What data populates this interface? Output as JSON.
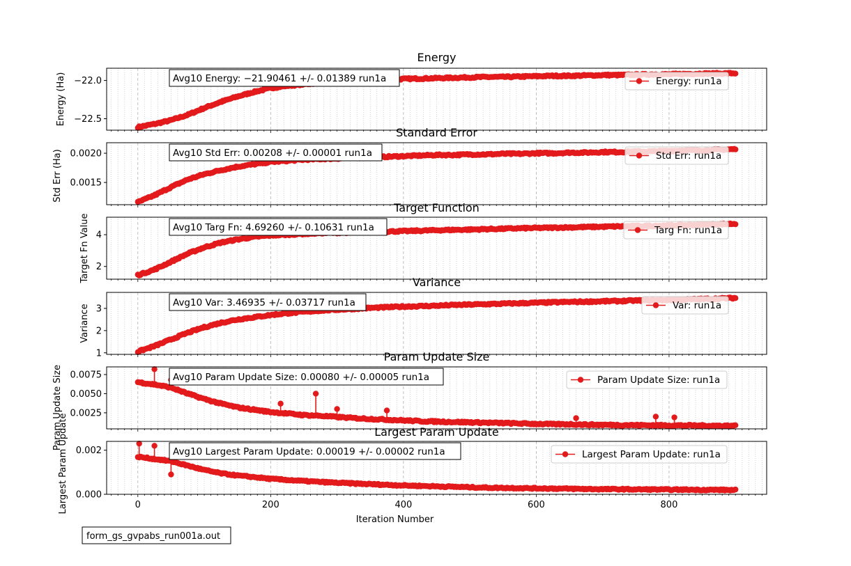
{
  "footer_label": "form_gs_gvpabs_run001a.out",
  "x_axis": {
    "label": "Iteration Number",
    "range": [
      -47,
      947
    ],
    "ticks": [
      0,
      200,
      400,
      600,
      800
    ],
    "tick_labels": [
      "0",
      "200",
      "400",
      "600",
      "800"
    ],
    "n_iterations": 900
  },
  "colors": {
    "series": "#e31a1c",
    "grid_major": "#b0b0b0",
    "grid_minor": "#c8c8c8"
  },
  "chart_data": [
    {
      "type": "line",
      "title": "Energy",
      "ylabel": "Energy (Ha)",
      "ylim": [
        -22.65,
        -21.84
      ],
      "yticks": [
        -22.5,
        -22.0
      ],
      "ytick_labels": [
        "−22.5",
        "−22.0"
      ],
      "annotation": "Avg10 Energy: −21.90461 +/- 0.01389  run1a",
      "legend": "Energy: run1a",
      "legend_placement": "right",
      "series": [
        {
          "name": "run1a",
          "x": [
            0,
            25,
            50,
            75,
            100,
            125,
            150,
            175,
            200,
            225,
            250,
            275,
            300,
            325,
            350,
            375,
            400,
            425,
            450,
            475,
            500,
            525,
            550,
            575,
            600,
            625,
            650,
            675,
            700,
            725,
            750,
            775,
            800,
            825,
            850,
            875,
            900
          ],
          "values": [
            -22.61,
            -22.57,
            -22.52,
            -22.45,
            -22.36,
            -22.28,
            -22.21,
            -22.15,
            -22.1,
            -22.07,
            -22.05,
            -22.03,
            -22.02,
            -22.01,
            -22.0,
            -21.99,
            -21.98,
            -21.975,
            -21.97,
            -21.965,
            -21.96,
            -21.955,
            -21.955,
            -21.95,
            -21.945,
            -21.94,
            -21.94,
            -21.935,
            -21.93,
            -21.93,
            -21.925,
            -21.92,
            -21.92,
            -21.915,
            -21.91,
            -21.91,
            -21.905
          ]
        }
      ]
    },
    {
      "type": "line",
      "title": "Standard Error",
      "ylabel": "Std Err (Ha)",
      "ylim": [
        0.00112,
        0.00218
      ],
      "yticks": [
        0.0015,
        0.002
      ],
      "ytick_labels": [
        "0.0015",
        "0.0020"
      ],
      "annotation": "Avg10 Std Err: 0.00208 +/- 0.00001  run1a",
      "legend": "Std Err: run1a",
      "legend_placement": "right",
      "series": [
        {
          "name": "run1a",
          "x": [
            0,
            25,
            50,
            75,
            100,
            125,
            150,
            175,
            200,
            225,
            250,
            275,
            300,
            325,
            350,
            375,
            400,
            425,
            450,
            475,
            500,
            525,
            550,
            575,
            600,
            625,
            650,
            675,
            700,
            725,
            750,
            775,
            800,
            825,
            850,
            875,
            900
          ],
          "values": [
            0.00116,
            0.00128,
            0.00142,
            0.00155,
            0.00164,
            0.00171,
            0.00177,
            0.00181,
            0.00185,
            0.00187,
            0.00189,
            0.0019,
            0.00191,
            0.00192,
            0.00193,
            0.00194,
            0.00195,
            0.00196,
            0.00197,
            0.00197,
            0.00198,
            0.00198,
            0.00199,
            0.00199,
            0.002,
            0.002,
            0.00201,
            0.00201,
            0.00202,
            0.00202,
            0.00203,
            0.00203,
            0.00204,
            0.00205,
            0.00205,
            0.00206,
            0.00207
          ]
        }
      ]
    },
    {
      "type": "line",
      "title": "Target Function",
      "ylabel": "Target Fn Value",
      "ylim": [
        1.2,
        5.1
      ],
      "yticks": [
        2,
        4
      ],
      "ytick_labels": [
        "2",
        "4"
      ],
      "annotation": "Avg10 Targ Fn: 4.69260 +/- 0.10631  run1a",
      "legend": "Targ Fn: run1a",
      "legend_placement": "right",
      "series": [
        {
          "name": "run1a",
          "x": [
            0,
            25,
            50,
            75,
            100,
            125,
            150,
            175,
            200,
            225,
            250,
            275,
            300,
            325,
            350,
            375,
            400,
            425,
            450,
            475,
            500,
            525,
            550,
            575,
            600,
            625,
            650,
            675,
            700,
            725,
            750,
            775,
            800,
            825,
            850,
            875,
            900
          ],
          "values": [
            1.45,
            1.8,
            2.3,
            2.8,
            3.2,
            3.5,
            3.7,
            3.85,
            3.95,
            4.0,
            4.05,
            4.1,
            4.12,
            4.15,
            4.18,
            4.2,
            4.22,
            4.25,
            4.28,
            4.3,
            4.32,
            4.35,
            4.37,
            4.4,
            4.42,
            4.44,
            4.46,
            4.48,
            4.5,
            4.52,
            4.54,
            4.56,
            4.58,
            4.6,
            4.63,
            4.66,
            4.69
          ]
        }
      ]
    },
    {
      "type": "line",
      "title": "Variance",
      "ylabel": "Variance",
      "ylim": [
        0.93,
        3.72
      ],
      "yticks": [
        1,
        2,
        3
      ],
      "ytick_labels": [
        "1",
        "2",
        "3"
      ],
      "annotation": "Avg10 Var: 3.46935 +/- 0.03717  run1a",
      "legend": "Var: run1a",
      "legend_placement": "right",
      "series": [
        {
          "name": "run1a",
          "x": [
            0,
            25,
            50,
            75,
            100,
            125,
            150,
            175,
            200,
            225,
            250,
            275,
            300,
            325,
            350,
            375,
            400,
            425,
            450,
            475,
            500,
            525,
            550,
            575,
            600,
            625,
            650,
            675,
            700,
            725,
            750,
            775,
            800,
            825,
            850,
            875,
            900
          ],
          "values": [
            1.05,
            1.3,
            1.6,
            1.9,
            2.15,
            2.35,
            2.5,
            2.6,
            2.7,
            2.78,
            2.84,
            2.9,
            2.94,
            2.98,
            3.02,
            3.05,
            3.08,
            3.1,
            3.12,
            3.15,
            3.17,
            3.19,
            3.21,
            3.23,
            3.25,
            3.27,
            3.29,
            3.3,
            3.32,
            3.33,
            3.35,
            3.37,
            3.38,
            3.4,
            3.42,
            3.44,
            3.47
          ]
        }
      ]
    },
    {
      "type": "line",
      "title": "Param Update Size",
      "ylabel": "Param Update Size",
      "ylim": [
        0.0004,
        0.0085
      ],
      "yticks": [
        0.0025,
        0.005,
        0.0075
      ],
      "ytick_labels": [
        "0.0025",
        "0.0050",
        "0.0075"
      ],
      "annotation": "Avg10 Param Update Size: 0.00080 +/- 0.00005  run1a",
      "legend": "Param Update Size: run1a",
      "legend_placement": "right",
      "series": [
        {
          "name": "run1a",
          "x": [
            0,
            25,
            50,
            75,
            100,
            125,
            150,
            175,
            200,
            225,
            250,
            275,
            300,
            325,
            350,
            375,
            400,
            425,
            450,
            475,
            500,
            525,
            550,
            575,
            600,
            625,
            650,
            675,
            700,
            725,
            750,
            775,
            800,
            825,
            850,
            875,
            900
          ],
          "values": [
            0.0065,
            0.0062,
            0.0058,
            0.005,
            0.0043,
            0.0037,
            0.0032,
            0.0029,
            0.0026,
            0.0024,
            0.0022,
            0.0021,
            0.00195,
            0.0018,
            0.0017,
            0.0016,
            0.0015,
            0.0014,
            0.00135,
            0.0013,
            0.00125,
            0.0012,
            0.00115,
            0.0011,
            0.00105,
            0.001,
            0.001,
            0.00095,
            0.00092,
            0.0009,
            0.00088,
            0.00086,
            0.00085,
            0.00084,
            0.00082,
            0.00081,
            0.0008
          ],
          "spikes": [
            [
              25,
              0.0082
            ],
            [
              50,
              0.0068
            ],
            [
              215,
              0.0037
            ],
            [
              268,
              0.005
            ],
            [
              300,
              0.003
            ],
            [
              375,
              0.0028
            ],
            [
              660,
              0.0018
            ],
            [
              780,
              0.002
            ],
            [
              808,
              0.0019
            ]
          ]
        }
      ]
    },
    {
      "type": "line",
      "title": "Largest Param Update",
      "ylabel": "Largest Param Update",
      "ylim": [
        0.0,
        0.0024
      ],
      "yticks": [
        0.0,
        0.002
      ],
      "ytick_labels": [
        "0.000",
        "0.002"
      ],
      "annotation": "Avg10 Largest Param Update: 0.00019 +/- 0.00002  run1a",
      "legend": "Largest Param Update: run1a",
      "legend_placement": "right",
      "series": [
        {
          "name": "run1a",
          "x": [
            0,
            25,
            50,
            75,
            100,
            125,
            150,
            175,
            200,
            225,
            250,
            275,
            300,
            325,
            350,
            375,
            400,
            425,
            450,
            475,
            500,
            525,
            550,
            575,
            600,
            625,
            650,
            675,
            700,
            725,
            750,
            775,
            800,
            825,
            850,
            875,
            900
          ],
          "values": [
            0.0017,
            0.0016,
            0.0015,
            0.0013,
            0.0011,
            0.00095,
            0.00085,
            0.00078,
            0.0007,
            0.00065,
            0.0006,
            0.00056,
            0.00052,
            0.00049,
            0.00046,
            0.00043,
            0.0004,
            0.00038,
            0.00036,
            0.00034,
            0.00032,
            0.0003,
            0.00029,
            0.00028,
            0.00027,
            0.00026,
            0.00025,
            0.00024,
            0.00023,
            0.00023,
            0.00022,
            0.00022,
            0.00021,
            0.00021,
            0.0002,
            0.0002,
            0.00019
          ],
          "spikes": [
            [
              2,
              0.0023
            ],
            [
              25,
              0.0022
            ],
            [
              50,
              0.0009
            ]
          ]
        }
      ]
    }
  ]
}
